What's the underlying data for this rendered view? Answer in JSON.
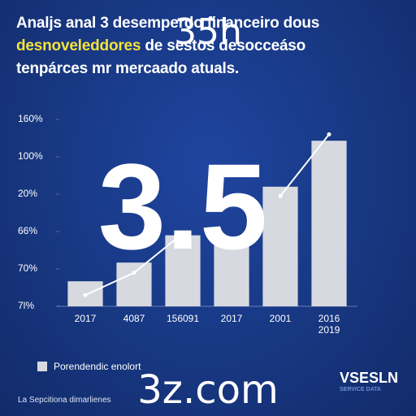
{
  "title": {
    "line1": "Analjs anal 3 desemperdo financeiro dous",
    "line2_highlight": "desnoveleddores",
    "line2_rest": " de sestos desocceáso",
    "line3": "tenpárces mr mercaado atuals."
  },
  "chart_data": {
    "type": "bar",
    "categories": [
      "2017",
      "4087",
      "156091",
      "2017",
      "2001",
      "2016\n2019"
    ],
    "series": [
      {
        "name": "Porendendic enolort",
        "color": "#d6d9e0",
        "values": [
          0.67,
          1.17,
          1.9,
          1.65,
          3.2,
          4.43
        ]
      },
      {
        "type": "line",
        "color": "#ffffff",
        "values": [
          0.3,
          0.9,
          1.95,
          null,
          2.95,
          4.6
        ]
      }
    ],
    "ylim": [
      0,
      5
    ],
    "yticks": [
      {
        "value": 0,
        "label": "7l%"
      },
      {
        "value": 1,
        "label": "70%"
      },
      {
        "value": 2,
        "label": "66%"
      },
      {
        "value": 3,
        "label": "20%"
      },
      {
        "value": 4,
        "label": "100%"
      },
      {
        "value": 5,
        "label": "160%"
      }
    ],
    "legend": "bottom-left"
  },
  "overlays": {
    "top": "35h",
    "center": "3.5",
    "bottom": "3z.com"
  },
  "footer": {
    "left": "La Sepcitiona dimarlienes",
    "brand": "VSESLN",
    "brand_sub": "SERVICE DATA"
  }
}
